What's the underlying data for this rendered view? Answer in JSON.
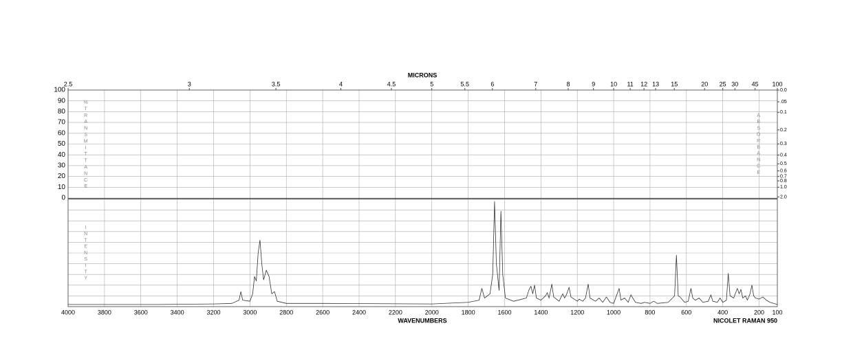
{
  "chart_data": {
    "type": "line",
    "top_axis_label": "MICRONS",
    "xlabel": "WAVENUMBERS",
    "instrument": "NICOLET RAMAN 950",
    "left_label": "%TRANSMITTANCE",
    "right_label": "ABSORBANCE",
    "lower_label": "INTENSITY",
    "xlim": [
      4000,
      100
    ],
    "xticks": [
      4000,
      3800,
      3600,
      3400,
      3200,
      3000,
      2800,
      2600,
      2400,
      2200,
      2000,
      1800,
      1600,
      1400,
      1200,
      1000,
      800,
      600,
      400,
      200,
      100
    ],
    "micron_ticks": [
      2.5,
      3,
      3.5,
      4,
      4.5,
      5,
      5.5,
      6,
      7,
      8,
      9,
      10,
      11,
      12,
      13,
      15,
      20,
      25,
      30,
      45,
      100
    ],
    "ylim": [
      0,
      100
    ],
    "yticks": [
      0,
      10,
      20,
      30,
      40,
      50,
      60,
      70,
      80,
      90,
      100
    ],
    "absorbance_ticks": [
      {
        "value": 0.0,
        "label": "0.0"
      },
      {
        "value": 0.05,
        "label": ".05"
      },
      {
        "value": 0.1,
        "label": "0.1"
      },
      {
        "value": 0.2,
        "label": "0.2"
      },
      {
        "value": 0.3,
        "label": "0.3"
      },
      {
        "value": 0.4,
        "label": "0.4"
      },
      {
        "value": 0.5,
        "label": "0.5"
      },
      {
        "value": 0.6,
        "label": "0.6"
      },
      {
        "value": 0.7,
        "label": "0.7"
      },
      {
        "value": 0.8,
        "label": "0.8"
      },
      {
        "value": 1.0,
        "label": "1.0"
      },
      {
        "value": 2.0,
        "label": "2.0"
      }
    ],
    "intensity_ylim": [
      0,
      100
    ],
    "intensity_grid": [
      0,
      10,
      20,
      30,
      40,
      50,
      60,
      70,
      80,
      90,
      100
    ],
    "x": [
      4000,
      3500,
      3200,
      3100,
      3060,
      3050,
      3040,
      3000,
      2985,
      2975,
      2965,
      2955,
      2945,
      2935,
      2925,
      2910,
      2895,
      2880,
      2865,
      2850,
      2800,
      2600,
      2000,
      1800,
      1740,
      1725,
      1710,
      1680,
      1665,
      1655,
      1645,
      1630,
      1620,
      1610,
      1595,
      1550,
      1480,
      1465,
      1455,
      1445,
      1435,
      1425,
      1400,
      1375,
      1365,
      1355,
      1340,
      1330,
      1300,
      1280,
      1270,
      1260,
      1245,
      1235,
      1200,
      1190,
      1170,
      1155,
      1140,
      1130,
      1100,
      1080,
      1060,
      1040,
      1020,
      1000,
      970,
      960,
      940,
      920,
      905,
      895,
      880,
      850,
      830,
      800,
      780,
      760,
      700,
      665,
      655,
      645,
      635,
      610,
      590,
      575,
      565,
      550,
      530,
      510,
      480,
      465,
      455,
      430,
      415,
      400,
      380,
      370,
      360,
      340,
      320,
      310,
      300,
      290,
      275,
      265,
      250,
      240,
      230,
      220,
      200,
      180,
      160,
      140,
      100
    ],
    "series": [
      {
        "color": "#333333",
        "values": [
          2,
          2,
          2.5,
          3,
          6,
          14,
          6,
          5,
          12,
          28,
          24,
          50,
          62,
          40,
          25,
          34,
          28,
          12,
          14,
          5,
          3,
          3,
          2.5,
          4,
          6,
          17,
          8,
          12,
          30,
          98,
          40,
          15,
          89,
          30,
          8,
          5,
          8,
          16,
          19,
          12,
          20,
          8,
          6,
          10,
          13,
          8,
          21,
          9,
          5,
          12,
          8,
          11,
          18,
          9,
          5,
          7,
          5,
          8,
          21,
          8,
          5,
          8,
          4,
          9,
          4,
          3,
          17,
          6,
          8,
          4,
          11,
          8,
          4,
          3,
          4,
          3,
          5,
          3,
          4,
          10,
          48,
          10,
          9,
          4,
          5,
          17,
          8,
          6,
          8,
          4,
          5,
          11,
          5,
          4,
          8,
          4,
          6,
          31,
          10,
          8,
          17,
          12,
          16,
          8,
          10,
          6,
          12,
          20,
          10,
          8,
          7,
          9,
          6,
          4,
          2
        ]
      }
    ]
  }
}
